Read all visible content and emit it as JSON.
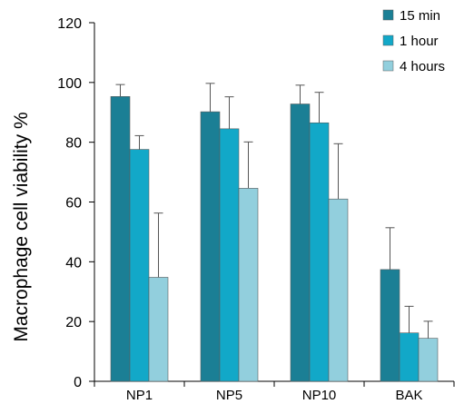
{
  "chart_data": {
    "type": "bar",
    "ylabel": "Macrophage cell  viability %",
    "xlabel": "",
    "ylim": [
      0,
      120
    ],
    "yticks": [
      0,
      20,
      40,
      60,
      80,
      100,
      120
    ],
    "categories": [
      "NP1",
      "NP5",
      "NP10",
      "BAK"
    ],
    "legend_position": "top-right",
    "series": [
      {
        "name": "15 min",
        "color": "#1b7f95",
        "values": [
          95.3,
          90.2,
          92.8,
          37.4
        ],
        "errors": [
          4.0,
          9.5,
          6.3,
          14.0
        ]
      },
      {
        "name": "1 hour",
        "color": "#12a8c8",
        "values": [
          77.6,
          84.5,
          86.5,
          16.2
        ],
        "errors": [
          4.6,
          10.7,
          10.2,
          8.9
        ]
      },
      {
        "name": "4 hours",
        "color": "#92cfdd",
        "values": [
          34.8,
          64.6,
          61.0,
          14.4
        ],
        "errors": [
          21.5,
          15.5,
          18.5,
          5.7
        ]
      }
    ]
  }
}
